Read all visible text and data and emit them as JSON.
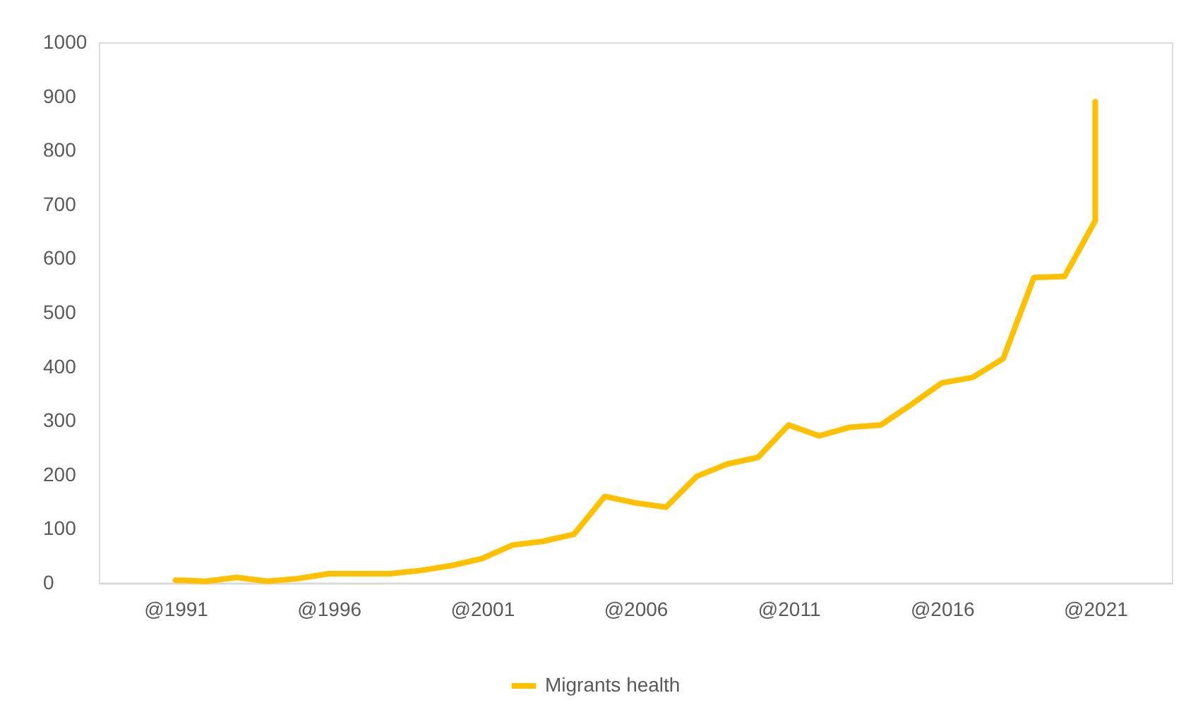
{
  "chart_data": {
    "type": "line",
    "legend": "bottom",
    "grid": false,
    "marker": "none",
    "line_style": "solid",
    "x": [
      1991,
      1992,
      1993,
      1994,
      1995,
      1996,
      1997,
      1998,
      1999,
      2000,
      2001,
      2002,
      2003,
      2004,
      2005,
      2006,
      2007,
      2008,
      2009,
      2010,
      2011,
      2012,
      2013,
      2014,
      2015,
      2016,
      2017,
      2018,
      2019,
      2020,
      2021,
      2021
    ],
    "xlim": [
      1988.5,
      2023.5
    ],
    "xticks": [
      {
        "value": 1991,
        "label": "@1991"
      },
      {
        "value": 1996,
        "label": "@1996"
      },
      {
        "value": 2001,
        "label": "@2001"
      },
      {
        "value": 2006,
        "label": "@2006"
      },
      {
        "value": 2011,
        "label": "@2011"
      },
      {
        "value": 2016,
        "label": "@2016"
      },
      {
        "value": 2021,
        "label": "@2021"
      }
    ],
    "ylim": [
      0,
      1000
    ],
    "yticks": [
      0,
      100,
      200,
      300,
      400,
      500,
      600,
      700,
      800,
      900,
      1000
    ],
    "series": [
      {
        "name": "Migrants health",
        "color": "#ffc000",
        "values": [
          5,
          3,
          10,
          3,
          8,
          17,
          17,
          17,
          23,
          32,
          45,
          70,
          77,
          90,
          160,
          148,
          140,
          197,
          220,
          232,
          292,
          272,
          288,
          292,
          330,
          370,
          380,
          415,
          565,
          567,
          670,
          890
        ]
      }
    ]
  }
}
